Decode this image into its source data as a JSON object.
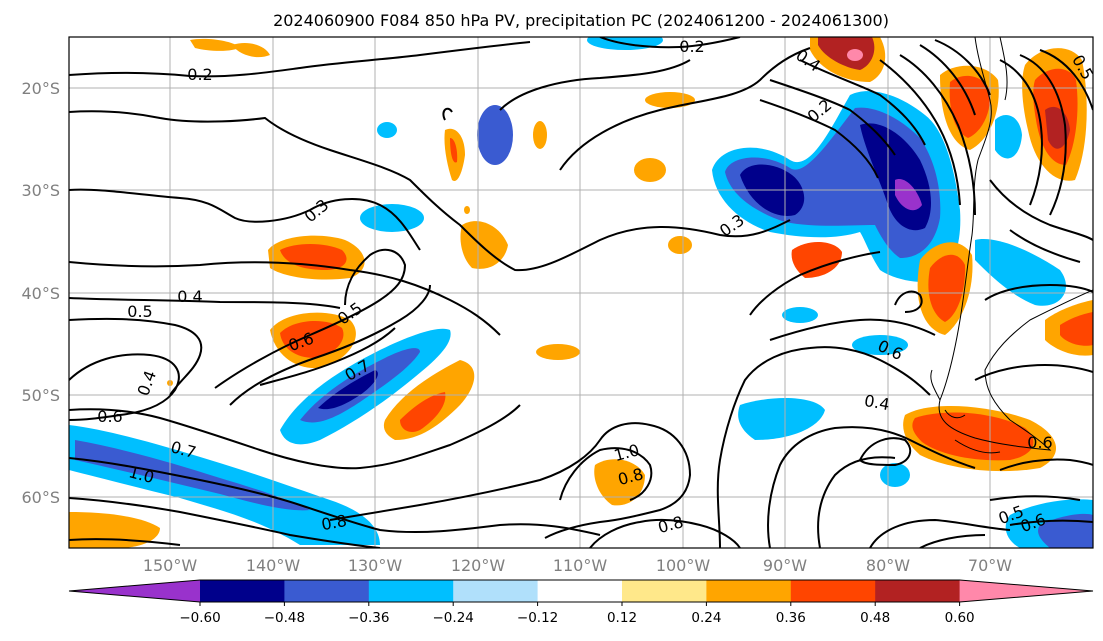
{
  "title": "2024060900 F084 850 hPa PV, precipitation PC (2024061200 - 2024061300)",
  "lat_labels": [
    "20°S",
    "30°S",
    "40°S",
    "50°S",
    "60°S"
  ],
  "lon_labels": [
    "150°W",
    "140°W",
    "130°W",
    "120°W",
    "110°W",
    "100°W",
    "90°W",
    "80°W",
    "70°W"
  ],
  "colorbar": {
    "tick_labels": [
      "−0.60",
      "−0.48",
      "−0.36",
      "−0.24",
      "−0.12",
      "0.12",
      "0.24",
      "0.36",
      "0.48",
      "0.60"
    ],
    "colors": [
      "#9932cc",
      "#00008b",
      "#3a5bd1",
      "#00bfff",
      "#b0e0fb",
      "#ffffff",
      "#ffe88a",
      "#ffa500",
      "#ff4500",
      "#b22222",
      "#ff88aa"
    ]
  },
  "contour_labels": [
    "0.2",
    "0.2",
    "0.4",
    "0.2",
    "0.3",
    "0.3",
    "0.4",
    "0.5",
    "0.5",
    "0.6",
    "0.7",
    "0.4",
    "0.6",
    "0.7",
    "1.0",
    "0.8",
    "1.0",
    "0.8",
    "0.8",
    "0.6",
    "0.4",
    "0.6",
    "0.5",
    "0.5",
    "0.6"
  ],
  "contour_label_pos_note": ""
}
